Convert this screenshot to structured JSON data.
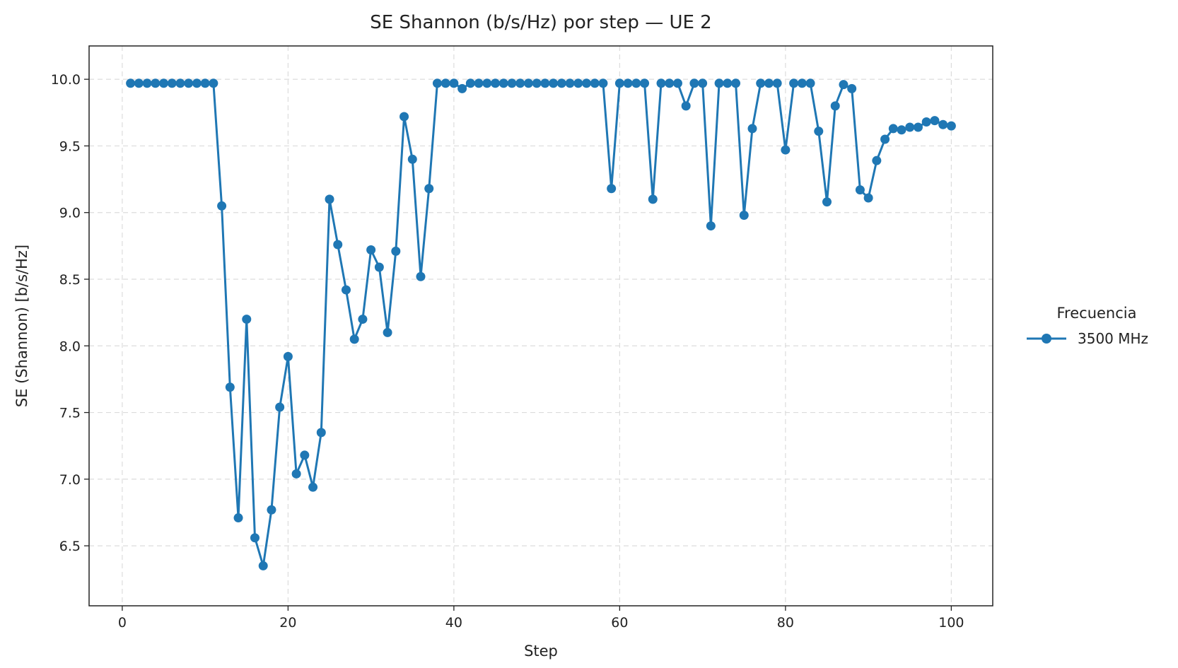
{
  "chart_data": {
    "type": "line",
    "title": "SE Shannon (b/s/Hz) por step — UE 2",
    "xlabel": "Step",
    "ylabel": "SE (Shannon) [b/s/Hz]",
    "xlim": [
      -4,
      105
    ],
    "ylim": [
      6.05,
      10.25
    ],
    "xticks": [
      0,
      20,
      40,
      60,
      80,
      100
    ],
    "yticks": [
      6.5,
      7.0,
      7.5,
      8.0,
      8.5,
      9.0,
      9.5,
      10.0
    ],
    "grid": true,
    "legend": {
      "title": "Frecuencia",
      "placement": "outside-right"
    },
    "color": "#1f77b4",
    "series": [
      {
        "name": "3500 MHz",
        "x": [
          1,
          2,
          3,
          4,
          5,
          6,
          7,
          8,
          9,
          10,
          11,
          12,
          13,
          14,
          15,
          16,
          17,
          18,
          19,
          20,
          21,
          22,
          23,
          24,
          25,
          26,
          27,
          28,
          29,
          30,
          31,
          32,
          33,
          34,
          35,
          36,
          37,
          38,
          39,
          40,
          41,
          42,
          43,
          44,
          45,
          46,
          47,
          48,
          49,
          50,
          51,
          52,
          53,
          54,
          55,
          56,
          57,
          58,
          59,
          60,
          61,
          62,
          63,
          64,
          65,
          66,
          67,
          68,
          69,
          70,
          71,
          72,
          73,
          74,
          75,
          76,
          77,
          78,
          79,
          80,
          81,
          82,
          83,
          84,
          85,
          86,
          87,
          88,
          89,
          90,
          91,
          92,
          93,
          94,
          95,
          96,
          97,
          98,
          99,
          100
        ],
        "y": [
          9.97,
          9.97,
          9.97,
          9.97,
          9.97,
          9.97,
          9.97,
          9.97,
          9.97,
          9.97,
          9.97,
          9.05,
          7.69,
          6.71,
          8.2,
          6.56,
          6.35,
          6.77,
          7.54,
          7.92,
          7.04,
          7.18,
          6.94,
          7.35,
          9.1,
          8.76,
          8.42,
          8.05,
          8.2,
          8.72,
          8.59,
          8.1,
          8.71,
          9.72,
          9.4,
          8.52,
          9.18,
          9.97,
          9.97,
          9.97,
          9.93,
          9.97,
          9.97,
          9.97,
          9.97,
          9.97,
          9.97,
          9.97,
          9.97,
          9.97,
          9.97,
          9.97,
          9.97,
          9.97,
          9.97,
          9.97,
          9.97,
          9.97,
          9.18,
          9.97,
          9.97,
          9.97,
          9.97,
          9.1,
          9.97,
          9.97,
          9.97,
          9.8,
          9.97,
          9.97,
          8.9,
          9.97,
          9.97,
          9.97,
          8.98,
          9.63,
          9.97,
          9.97,
          9.97,
          9.47,
          9.97,
          9.97,
          9.97,
          9.61,
          9.08,
          9.8,
          9.96,
          9.93,
          9.17,
          9.11,
          9.39,
          9.55,
          9.63,
          9.62,
          9.64,
          9.64,
          9.68,
          9.69,
          9.66,
          9.65
        ]
      }
    ]
  }
}
